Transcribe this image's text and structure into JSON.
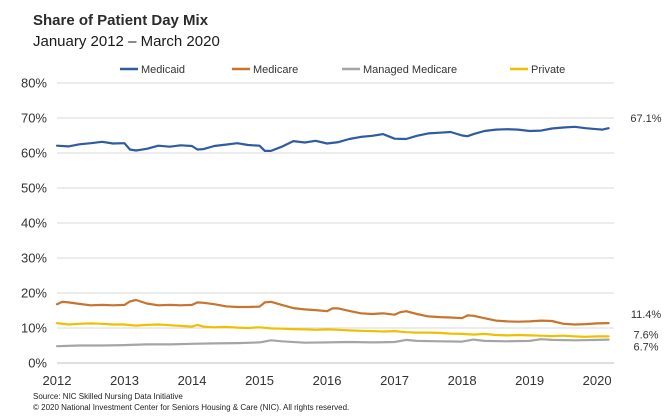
{
  "chart_data": {
    "type": "line",
    "title": "Share of Patient Day Mix",
    "subtitle": "January  2012 – March 2020",
    "xlabel": "",
    "ylabel": "",
    "x_ticks": [
      "2012",
      "2013",
      "2014",
      "2015",
      "2016",
      "2017",
      "2018",
      "2019",
      "2020"
    ],
    "x_range": [
      2012.0,
      2020.25
    ],
    "y_ticks": [
      "0%",
      "10%",
      "20%",
      "30%",
      "40%",
      "50%",
      "60%",
      "70%",
      "80%"
    ],
    "ylim": [
      0,
      80
    ],
    "grid": true,
    "legend_position": "top",
    "series": [
      {
        "name": "Medicaid",
        "color": "#2e5c9e",
        "end_label": "67.1%",
        "x": [
          2012.0,
          2012.17,
          2012.33,
          2012.5,
          2012.67,
          2012.83,
          2013.0,
          2013.08,
          2013.17,
          2013.33,
          2013.5,
          2013.67,
          2013.83,
          2014.0,
          2014.08,
          2014.17,
          2014.33,
          2014.5,
          2014.67,
          2014.83,
          2015.0,
          2015.08,
          2015.17,
          2015.33,
          2015.5,
          2015.67,
          2015.83,
          2016.0,
          2016.17,
          2016.33,
          2016.5,
          2016.67,
          2016.83,
          2017.0,
          2017.17,
          2017.33,
          2017.5,
          2017.67,
          2017.83,
          2018.0,
          2018.08,
          2018.17,
          2018.33,
          2018.5,
          2018.67,
          2018.83,
          2019.0,
          2019.17,
          2019.33,
          2019.5,
          2019.67,
          2019.83,
          2020.0,
          2020.08,
          2020.17
        ],
        "values": [
          62.1,
          61.9,
          62.5,
          62.8,
          63.2,
          62.7,
          62.8,
          61.0,
          60.7,
          61.2,
          62.1,
          61.8,
          62.2,
          62.0,
          61.0,
          61.1,
          62.0,
          62.4,
          62.8,
          62.3,
          62.1,
          60.6,
          60.6,
          61.8,
          63.4,
          63.0,
          63.5,
          62.7,
          63.1,
          64.0,
          64.6,
          64.9,
          65.4,
          64.1,
          64.0,
          64.9,
          65.6,
          65.8,
          66.0,
          65.0,
          64.8,
          65.4,
          66.3,
          66.7,
          66.8,
          66.7,
          66.3,
          66.4,
          67.0,
          67.3,
          67.5,
          67.1,
          66.8,
          66.7,
          67.1
        ]
      },
      {
        "name": "Medicare",
        "color": "#c8742c",
        "end_label": "11.4%",
        "x": [
          2012.0,
          2012.08,
          2012.17,
          2012.33,
          2012.5,
          2012.67,
          2012.83,
          2013.0,
          2013.08,
          2013.17,
          2013.33,
          2013.5,
          2013.67,
          2013.83,
          2014.0,
          2014.08,
          2014.17,
          2014.33,
          2014.5,
          2014.67,
          2014.83,
          2015.0,
          2015.08,
          2015.17,
          2015.33,
          2015.5,
          2015.67,
          2015.83,
          2016.0,
          2016.08,
          2016.17,
          2016.33,
          2016.5,
          2016.67,
          2016.83,
          2017.0,
          2017.08,
          2017.17,
          2017.33,
          2017.5,
          2017.67,
          2017.83,
          2018.0,
          2018.08,
          2018.17,
          2018.33,
          2018.5,
          2018.67,
          2018.83,
          2019.0,
          2019.17,
          2019.33,
          2019.5,
          2019.67,
          2019.83,
          2020.0,
          2020.17
        ],
        "values": [
          16.8,
          17.5,
          17.3,
          16.9,
          16.5,
          16.6,
          16.5,
          16.6,
          17.6,
          18.0,
          17.0,
          16.5,
          16.6,
          16.5,
          16.6,
          17.3,
          17.2,
          16.8,
          16.2,
          16.0,
          16.0,
          16.1,
          17.3,
          17.5,
          16.6,
          15.7,
          15.3,
          15.1,
          14.8,
          15.6,
          15.6,
          14.9,
          14.2,
          14.0,
          14.2,
          13.8,
          14.5,
          14.8,
          14.0,
          13.3,
          13.1,
          13.0,
          12.8,
          13.6,
          13.5,
          12.8,
          12.1,
          11.9,
          11.8,
          11.9,
          12.1,
          12.0,
          11.2,
          11.0,
          11.1,
          11.3,
          11.4
        ]
      },
      {
        "name": "Managed Medicare",
        "color": "#a5a5a5",
        "end_label": "6.7%",
        "x": [
          2012.0,
          2012.33,
          2012.67,
          2013.0,
          2013.33,
          2013.67,
          2014.0,
          2014.33,
          2014.67,
          2015.0,
          2015.17,
          2015.33,
          2015.67,
          2016.0,
          2016.33,
          2016.67,
          2017.0,
          2017.17,
          2017.33,
          2017.67,
          2018.0,
          2018.17,
          2018.33,
          2018.67,
          2019.0,
          2019.17,
          2019.33,
          2019.67,
          2020.0,
          2020.17
        ],
        "values": [
          4.8,
          5.0,
          5.0,
          5.1,
          5.3,
          5.3,
          5.5,
          5.6,
          5.7,
          5.9,
          6.5,
          6.2,
          5.8,
          5.9,
          6.0,
          5.9,
          6.0,
          6.6,
          6.3,
          6.2,
          6.1,
          6.7,
          6.3,
          6.2,
          6.3,
          6.8,
          6.6,
          6.5,
          6.6,
          6.7
        ]
      },
      {
        "name": "Private",
        "color": "#f0c000",
        "end_label": "7.6%",
        "x": [
          2012.0,
          2012.17,
          2012.33,
          2012.5,
          2012.67,
          2012.83,
          2013.0,
          2013.17,
          2013.33,
          2013.5,
          2013.67,
          2013.83,
          2014.0,
          2014.08,
          2014.17,
          2014.33,
          2014.5,
          2014.67,
          2014.83,
          2015.0,
          2015.17,
          2015.33,
          2015.5,
          2015.67,
          2015.83,
          2016.0,
          2016.17,
          2016.33,
          2016.5,
          2016.67,
          2016.83,
          2017.0,
          2017.17,
          2017.33,
          2017.5,
          2017.67,
          2017.83,
          2018.0,
          2018.17,
          2018.33,
          2018.5,
          2018.67,
          2018.83,
          2019.0,
          2019.17,
          2019.33,
          2019.5,
          2019.67,
          2019.83,
          2020.0,
          2020.17
        ],
        "values": [
          11.4,
          11.0,
          11.2,
          11.3,
          11.2,
          11.0,
          11.0,
          10.7,
          10.9,
          11.0,
          10.8,
          10.6,
          10.4,
          10.9,
          10.4,
          10.2,
          10.3,
          10.1,
          10.0,
          10.2,
          9.9,
          9.8,
          9.7,
          9.6,
          9.5,
          9.6,
          9.5,
          9.3,
          9.2,
          9.1,
          9.0,
          9.1,
          8.8,
          8.7,
          8.7,
          8.6,
          8.4,
          8.3,
          8.1,
          8.3,
          8.0,
          7.9,
          8.0,
          7.9,
          7.8,
          7.7,
          7.8,
          7.6,
          7.5,
          7.6,
          7.6
        ]
      }
    ]
  },
  "footer": {
    "source": "Source: NIC Skilled Nursing Data Initiative",
    "copyright": "© 2020 National Investment Center for Seniors Housing & Care (NIC).  All rights reserved."
  }
}
